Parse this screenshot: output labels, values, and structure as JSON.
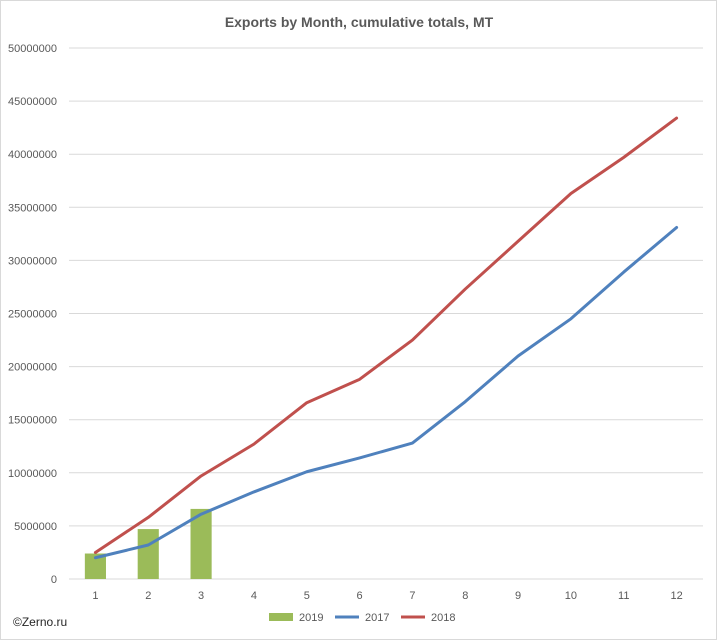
{
  "watermark": "©Zerno.ru",
  "chart_data": {
    "type": "bar+line",
    "title": "Exports by Month, cumulative totals, MT",
    "xlabel": "",
    "ylabel": "",
    "categories": [
      "1",
      "2",
      "3",
      "4",
      "5",
      "6",
      "7",
      "8",
      "9",
      "10",
      "11",
      "12"
    ],
    "ylim": [
      0,
      50000000
    ],
    "y_ticks": [
      "0",
      "5000000",
      "10000000",
      "15000000",
      "20000000",
      "25000000",
      "30000000",
      "35000000",
      "40000000",
      "45000000",
      "50000000"
    ],
    "grid": true,
    "legend_position": "bottom",
    "series": [
      {
        "name": "2019",
        "kind": "bar",
        "color": "#9bbb59",
        "values": [
          2400000,
          4700000,
          6600000,
          null,
          null,
          null,
          null,
          null,
          null,
          null,
          null,
          null
        ]
      },
      {
        "name": "2017",
        "kind": "line",
        "color": "#4f81bd",
        "values": [
          2000000,
          3200000,
          6100000,
          8200000,
          10100000,
          11400000,
          12800000,
          16700000,
          21000000,
          24500000,
          28900000,
          33100000
        ]
      },
      {
        "name": "2018",
        "kind": "line",
        "color": "#c0504d",
        "values": [
          2500000,
          5800000,
          9700000,
          12700000,
          16600000,
          18800000,
          22500000,
          27300000,
          31800000,
          36300000,
          39700000,
          43400000
        ]
      }
    ]
  }
}
